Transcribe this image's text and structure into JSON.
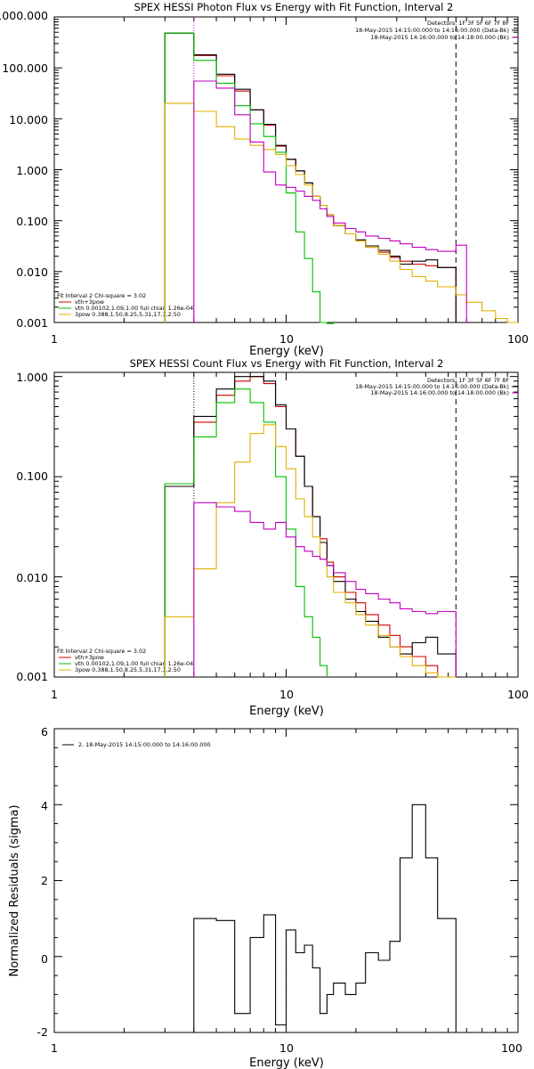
{
  "chart_data": [
    {
      "type": "line",
      "title": "SPEX HESSI Photon Flux vs Energy with Fit Function, Interval 2",
      "xlabel": "Energy (keV)",
      "ylabel": "",
      "xscale": "log",
      "yscale": "log",
      "xlim": [
        1,
        100
      ],
      "ylim": [
        0.001,
        1000
      ],
      "x_ticks": [
        "1",
        "10",
        "100"
      ],
      "y_ticks": [
        "1000.000",
        "100.000",
        "10.000",
        "1.000",
        "0.100",
        "0.010",
        "0.001"
      ],
      "top_legend": {
        "lines": [
          "Detectors: 1F 3F 5F 6F 7F 8F",
          "18-May-2015 14:15:00.000 to 14:16:00.000 (Data-Bk)",
          "18-May-2015 14:16:00.000 to 14:18:00.000 (Bk)"
        ],
        "colors": [
          "#000000",
          "#000000",
          "#c000c0"
        ]
      },
      "bottom_legend": {
        "title": "Fit Interval 2   Chi-square = 3.02",
        "lines": [
          "vth+3pow",
          "vth 0.00102,1.09,1.00  full chian 1.26e-04",
          "3pow 0.388,1.50,8.25,5.31,17.3,2.50"
        ],
        "colors": [
          "#d00000",
          "#00c000",
          "#e0b000"
        ]
      },
      "vlines": [
        {
          "x": 4.0,
          "style": "dotted",
          "color": "#c000c0"
        },
        {
          "x": 54,
          "style": "dashed",
          "color": "#000000"
        }
      ],
      "edges": [
        3,
        4,
        5,
        6,
        7,
        8,
        9,
        10,
        11,
        12,
        13,
        14,
        15,
        16,
        18,
        20,
        22,
        25,
        28,
        31,
        35,
        40,
        45,
        54,
        60,
        70,
        80,
        90,
        100
      ],
      "series": [
        {
          "name": "",
          "color": "#d00000",
          "values": [
            480,
            175,
            70,
            35,
            15,
            7.5,
            2.9,
            1.6,
            0.95,
            0.55,
            0.3,
            0.2,
            0.13,
            0.08,
            0.055,
            0.04,
            0.03,
            0.024,
            0.019,
            0.016,
            0.014,
            0.013,
            0.012,
            null,
            null,
            null,
            null,
            null
          ]
        },
        {
          "name": "",
          "color": "#000000",
          "values": [
            480,
            180,
            75,
            38,
            15,
            7.8,
            3.0,
            1.6,
            0.95,
            0.55,
            0.3,
            0.2,
            0.13,
            0.08,
            0.055,
            0.042,
            0.032,
            0.026,
            0.02,
            0.014,
            0.016,
            0.017,
            0.012,
            null,
            null,
            null,
            null,
            null
          ]
        },
        {
          "name": "",
          "color": "#00c000",
          "values": [
            480,
            140,
            50,
            18,
            8.0,
            4.5,
            2.2,
            0.35,
            0.06,
            0.018,
            0.004,
            0.001,
            0.00095,
            null,
            null,
            null,
            null,
            null,
            null,
            null,
            null,
            null,
            null,
            null,
            null,
            null,
            null,
            null
          ]
        },
        {
          "name": "",
          "color": "#e0b000",
          "values": [
            20,
            14,
            7,
            4,
            3.0,
            2.5,
            2.0,
            1.2,
            0.8,
            0.5,
            0.3,
            0.2,
            0.13,
            0.08,
            0.055,
            0.04,
            0.03,
            0.022,
            0.016,
            0.011,
            0.008,
            0.0065,
            0.005,
            0.0035,
            0.0025,
            0.0017,
            0.0012,
            0.001
          ]
        },
        {
          "name": "",
          "color": "#c000c0",
          "values": [
            null,
            55,
            40,
            12,
            3.5,
            0.9,
            0.5,
            0.45,
            0.38,
            0.3,
            0.25,
            0.17,
            0.12,
            0.09,
            0.07,
            0.06,
            0.05,
            0.045,
            0.04,
            0.035,
            0.03,
            0.027,
            0.025,
            0.033,
            null,
            null,
            null,
            null
          ]
        }
      ]
    },
    {
      "type": "line",
      "title": "SPEX HESSI Count Flux vs Energy with Fit Function, Interval 2",
      "xlabel": "Energy (keV)",
      "ylabel": "",
      "xscale": "log",
      "yscale": "log",
      "xlim": [
        1,
        100
      ],
      "ylim": [
        0.001,
        1.1
      ],
      "x_ticks": [
        "1",
        "10",
        "100"
      ],
      "y_ticks": [
        "1.000",
        "0.100",
        "0.010",
        "0.001"
      ],
      "top_legend": {
        "lines": [
          "Detectors: 1F 3F 5F 6F 7F 8F",
          "18-May-2015 14:15:00.000 to 14:16:00.000 (Data-Bk)",
          "18-May-2015 14:16:00.000 to 14:18:00.000 (Bk)"
        ],
        "colors": [
          "#000000",
          "#000000",
          "#c000c0"
        ]
      },
      "bottom_legend": {
        "title": "Fit Interval 2   Chi-square = 3.02",
        "lines": [
          "vth+3pow",
          "vth 0.00102,1.09,1.00  full chian 1.26e-04",
          "3pow 0.388,1.50,8.25,5.31,17.3,2.50"
        ],
        "colors": [
          "#d00000",
          "#00c000",
          "#e0b000"
        ]
      },
      "vlines": [
        {
          "x": 4.0,
          "style": "dotted",
          "color": "#000000"
        },
        {
          "x": 54,
          "style": "dashed",
          "color": "#000000"
        }
      ],
      "edges": [
        3,
        4,
        5,
        6,
        7,
        8,
        9,
        10,
        11,
        12,
        13,
        14,
        15,
        16,
        18,
        20,
        22,
        25,
        28,
        31,
        35,
        40,
        45,
        54
      ],
      "series": [
        {
          "name": "",
          "color": "#d00000",
          "values": [
            0.08,
            0.35,
            0.65,
            0.9,
            1.0,
            0.85,
            0.5,
            0.3,
            0.16,
            0.08,
            0.04,
            0.024,
            0.014,
            0.01,
            0.007,
            0.0055,
            0.0042,
            0.0033,
            0.0026,
            0.002,
            0.0016,
            0.0013,
            0.001
          ]
        },
        {
          "name": "",
          "color": "#000000",
          "values": [
            0.08,
            0.4,
            0.75,
            1.0,
            1.0,
            0.9,
            0.52,
            0.3,
            0.16,
            0.08,
            0.04,
            0.022,
            0.013,
            0.009,
            0.006,
            0.0045,
            0.0036,
            0.0025,
            0.002,
            0.0017,
            0.0022,
            0.0025,
            0.0017
          ]
        },
        {
          "name": "",
          "color": "#00c000",
          "values": [
            0.085,
            0.25,
            0.55,
            0.75,
            0.55,
            0.35,
            0.1,
            0.03,
            0.008,
            0.004,
            0.0025,
            0.0013,
            null,
            null,
            null,
            null,
            null,
            null,
            null,
            null,
            null,
            null,
            null
          ]
        },
        {
          "name": "",
          "color": "#e0b000",
          "values": [
            0.004,
            0.012,
            0.055,
            0.14,
            0.27,
            0.33,
            0.2,
            0.12,
            0.06,
            0.04,
            0.025,
            0.015,
            0.01,
            0.007,
            0.0055,
            0.0042,
            0.0033,
            0.0026,
            0.002,
            0.0016,
            0.0013,
            0.0011,
            0.001
          ]
        },
        {
          "name": "",
          "color": "#c000c0",
          "values": [
            null,
            0.055,
            0.05,
            0.045,
            0.035,
            0.03,
            0.035,
            0.025,
            0.02,
            0.018,
            0.016,
            0.015,
            0.013,
            0.011,
            0.009,
            0.0075,
            0.0068,
            0.006,
            0.0055,
            0.0048,
            0.0045,
            0.0043,
            0.0045
          ]
        }
      ]
    },
    {
      "type": "line",
      "title": "",
      "xlabel": "Energy (keV)",
      "ylabel": "Normalized Residuals (sigma)",
      "xscale": "log",
      "yscale": "linear",
      "xlim": [
        1,
        100
      ],
      "ylim": [
        -2,
        6
      ],
      "x_ticks": [
        "1",
        "10",
        "100"
      ],
      "y_ticks": [
        "6",
        "4",
        "2",
        "0",
        "-2"
      ],
      "legend": "2. 18-May-2015 14:15:00.000 to 14:16:00.000",
      "edges": [
        4,
        5,
        6,
        7,
        8,
        9,
        10,
        11,
        12,
        13,
        14,
        15,
        16,
        18,
        20,
        22,
        25,
        28,
        31,
        35,
        40,
        45,
        54
      ],
      "series": [
        {
          "name": "",
          "color": "#000000",
          "values": [
            1.0,
            0.95,
            -1.5,
            0.5,
            1.1,
            -1.8,
            0.7,
            0.1,
            0.3,
            -0.3,
            -1.5,
            -1.0,
            -0.7,
            -1.0,
            -0.7,
            0.1,
            -0.1,
            0.4,
            2.6,
            4.0,
            2.6,
            1.0
          ]
        }
      ]
    }
  ]
}
